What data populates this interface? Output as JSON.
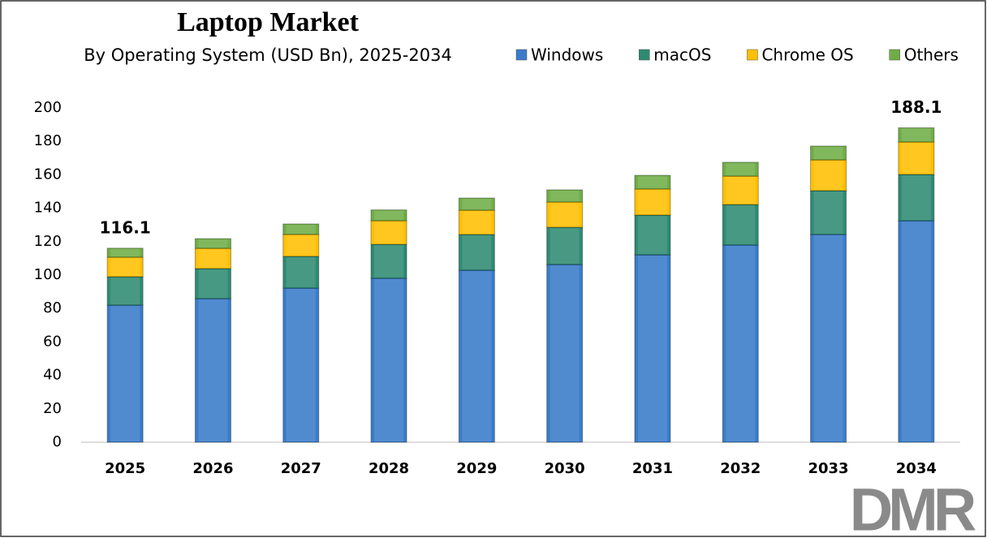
{
  "chart_data": {
    "type": "stacked-bar",
    "title": "Laptop Market",
    "subtitle": "By Operating System (USD Bn), 2025-2034",
    "categories": [
      "2025",
      "2026",
      "2027",
      "2028",
      "2029",
      "2030",
      "2031",
      "2032",
      "2033",
      "2034"
    ],
    "series": [
      {
        "name": "Windows",
        "color": "#3a7cc9",
        "values": [
          82.0,
          85.9,
          92.2,
          98.1,
          102.9,
          106.3,
          112.1,
          118.0,
          124.3,
          132.5
        ]
      },
      {
        "name": "macOS",
        "color": "#2e8b72",
        "values": [
          17.0,
          18.0,
          19.0,
          20.3,
          21.4,
          22.3,
          23.8,
          24.2,
          26.2,
          27.7
        ]
      },
      {
        "name": "Chrome OS",
        "color": "#ffc000",
        "values": [
          11.7,
          12.1,
          13.1,
          14.1,
          14.5,
          15.1,
          15.6,
          17.0,
          18.4,
          19.4
        ]
      },
      {
        "name": "Others",
        "color": "#70ad47",
        "values": [
          5.4,
          5.8,
          6.3,
          6.5,
          7.3,
          7.3,
          8.2,
          8.3,
          8.3,
          8.5
        ]
      }
    ],
    "annotations": [
      {
        "category": "2025",
        "value": 116.1
      },
      {
        "category": "2034",
        "value": 188.1
      }
    ],
    "ylim": [
      0,
      200
    ],
    "yticks": [
      0,
      20,
      40,
      60,
      80,
      100,
      120,
      140,
      160,
      180,
      200
    ],
    "grid": false,
    "legend": "top-right",
    "logo": "DMR"
  }
}
